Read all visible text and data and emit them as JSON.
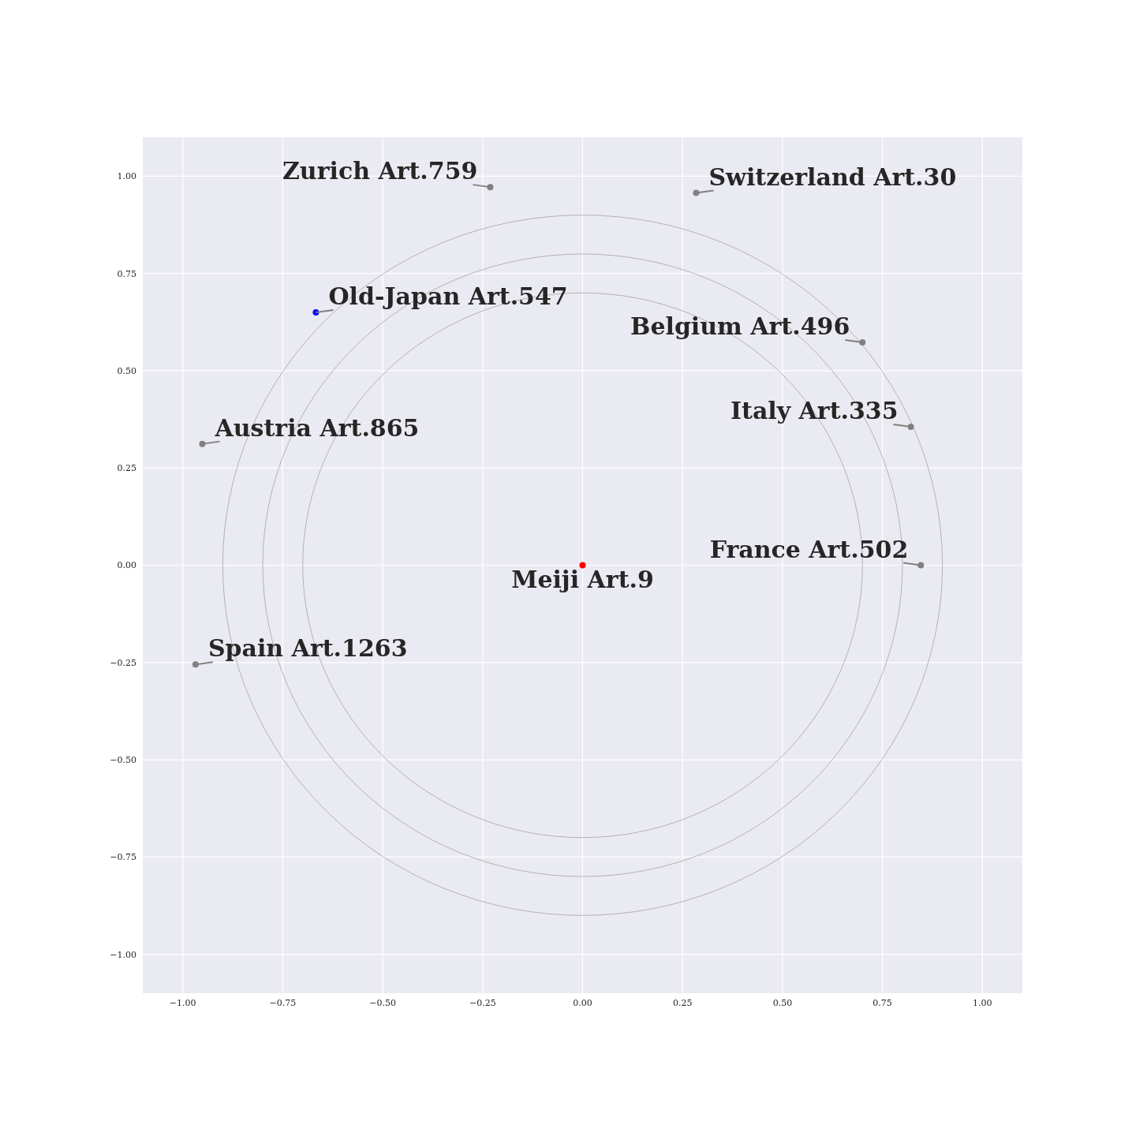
{
  "chart_data": {
    "type": "scatter",
    "xlim": [
      -1.1,
      1.1
    ],
    "ylim": [
      -1.1,
      1.1
    ],
    "xticks": [
      {
        "value": -1,
        "label": "−1.00"
      },
      {
        "value": -0.75,
        "label": "−0.75"
      },
      {
        "value": -0.5,
        "label": "−0.50"
      },
      {
        "value": -0.25,
        "label": "−0.25"
      },
      {
        "value": 0,
        "label": "0.00"
      },
      {
        "value": 0.25,
        "label": "0.25"
      },
      {
        "value": 0.5,
        "label": "0.50"
      },
      {
        "value": 0.75,
        "label": "0.75"
      },
      {
        "value": 1,
        "label": "1.00"
      }
    ],
    "yticks": [
      {
        "value": -1,
        "label": "−1.00"
      },
      {
        "value": -0.75,
        "label": "−0.75"
      },
      {
        "value": -0.5,
        "label": "−0.50"
      },
      {
        "value": -0.25,
        "label": "−0.25"
      },
      {
        "value": 0,
        "label": "0.00"
      },
      {
        "value": 0.25,
        "label": "0.25"
      },
      {
        "value": 0.5,
        "label": "0.50"
      },
      {
        "value": 0.75,
        "label": "0.75"
      },
      {
        "value": 1,
        "label": "1.00"
      }
    ],
    "grid": true,
    "marker": "circle",
    "series": [
      {
        "type": "scatter",
        "x": [
          -0.231,
          0.284,
          -0.667,
          0.7,
          0.821,
          -0.951,
          0.846,
          0,
          -0.968
        ],
        "values": [
          0.972,
          0.957,
          0.65,
          0.573,
          0.356,
          0.312,
          0,
          0,
          -0.255
        ],
        "colors": [
          "#808080",
          "#808080",
          "#0000ff",
          "#808080",
          "#808080",
          "#808080",
          "#808080",
          "#ff0000",
          "#808080"
        ]
      }
    ],
    "annotations": [
      {
        "text": "Zurich Art.759",
        "x": -0.231,
        "y": 0.972
      },
      {
        "text": "Switzerland Art.30",
        "x": 0.284,
        "y": 0.957
      },
      {
        "text": "Old-Japan Art.547",
        "x": -0.667,
        "y": 0.65
      },
      {
        "text": "Belgium Art.496",
        "x": 0.7,
        "y": 0.573
      },
      {
        "text": "Italy Art.335",
        "x": 0.821,
        "y": 0.356
      },
      {
        "text": "Austria Art.865",
        "x": -0.951,
        "y": 0.312
      },
      {
        "text": "France Art.502",
        "x": 0.846,
        "y": 0
      },
      {
        "text": "Meiji Art.9",
        "x": 0,
        "y": 0
      },
      {
        "text": "Spain Art.1263",
        "x": -0.968,
        "y": -0.255
      }
    ]
  }
}
